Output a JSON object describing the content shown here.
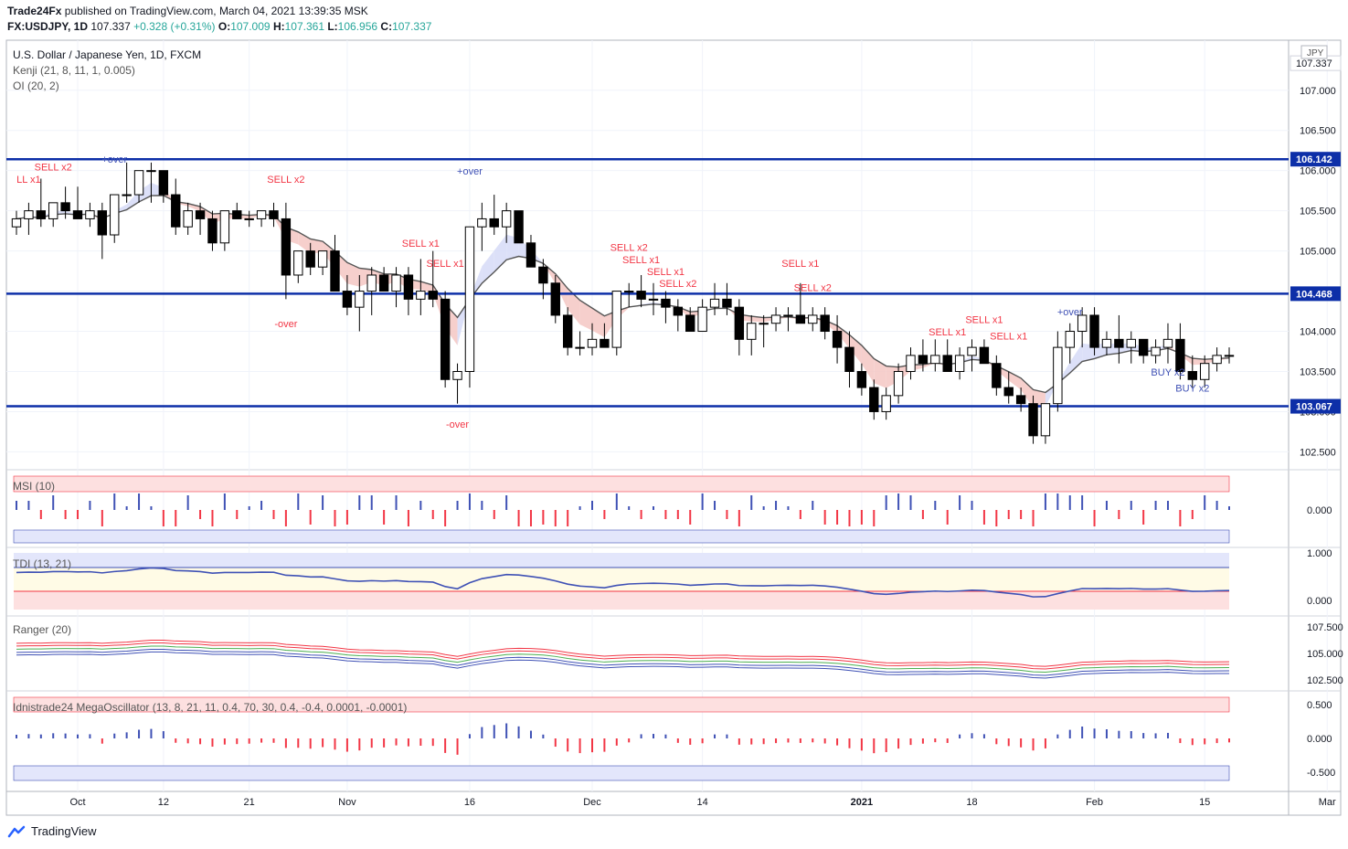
{
  "header": {
    "publisher": "Trade24Fx",
    "published_text": "published on TradingView.com, March 04, 2021 13:39:35 MSK",
    "symbol": "FX:USDJPY, 1D",
    "last": "107.337",
    "change": "+0.328 (+0.31%)",
    "open": "107.009",
    "high": "107.361",
    "low": "106.956",
    "close": "107.337"
  },
  "footer": {
    "brand": "TradingView",
    "logo_icon": "tradingview-logo-icon"
  },
  "colors": {
    "up": "#ffffff",
    "down": "#000000",
    "hline": "#0d2fa8",
    "hline_label_bg": "#0d2fa8",
    "kenji_fill_bear": "#f4c7c3",
    "kenji_fill_bull": "#cfe8cf",
    "kenji_fill_blue": "#d6dbf7",
    "sell": "#f23645",
    "buy": "#3f51b5",
    "green": "#4caf50"
  },
  "chart_data": [
    {
      "type": "candlestick",
      "title": "U.S. Dollar / Japanese Yen, 1D, FXCM",
      "indicators": [
        "Kenji (21, 8, 11, 1, 0.005)",
        "OI (20, 2)"
      ],
      "currency_label": "JPY",
      "ylim": [
        102.3,
        107.6
      ],
      "y_ticks": [
        "102.500",
        "103.000",
        "103.500",
        "104.000",
        "104.500",
        "105.000",
        "105.500",
        "106.000",
        "106.500",
        "107.000",
        "107.337"
      ],
      "x_ticks": [
        {
          "label": "Oct",
          "idx": 5
        },
        {
          "label": "12",
          "idx": 12
        },
        {
          "label": "21",
          "idx": 19
        },
        {
          "label": "Nov",
          "idx": 27
        },
        {
          "label": "16",
          "idx": 37
        },
        {
          "label": "Dec",
          "idx": 47
        },
        {
          "label": "14",
          "idx": 56
        },
        {
          "label": "2021",
          "idx": 69
        },
        {
          "label": "18",
          "idx": 78
        },
        {
          "label": "Feb",
          "idx": 88
        },
        {
          "label": "15",
          "idx": 97
        },
        {
          "label": "Mar",
          "idx": 107
        }
      ],
      "horizontal_lines": [
        106.142,
        104.468,
        103.067
      ],
      "candles": [
        [
          105.3,
          105.5,
          105.2,
          105.4
        ],
        [
          105.4,
          105.6,
          105.2,
          105.5
        ],
        [
          105.5,
          105.9,
          105.3,
          105.4
        ],
        [
          105.4,
          105.6,
          105.3,
          105.6
        ],
        [
          105.6,
          105.8,
          105.4,
          105.5
        ],
        [
          105.5,
          105.8,
          105.4,
          105.4
        ],
        [
          105.4,
          105.6,
          105.3,
          105.5
        ],
        [
          105.5,
          105.6,
          104.9,
          105.2
        ],
        [
          105.2,
          105.7,
          105.1,
          105.7
        ],
        [
          105.7,
          106.1,
          105.6,
          105.7
        ],
        [
          105.7,
          106.0,
          105.6,
          106.0
        ],
        [
          106.0,
          106.1,
          105.6,
          106.0
        ],
        [
          106.0,
          106.0,
          105.6,
          105.7
        ],
        [
          105.7,
          105.9,
          105.2,
          105.3
        ],
        [
          105.3,
          105.6,
          105.2,
          105.5
        ],
        [
          105.5,
          105.6,
          105.2,
          105.4
        ],
        [
          105.4,
          105.5,
          105.0,
          105.1
        ],
        [
          105.1,
          105.5,
          105.0,
          105.5
        ],
        [
          105.5,
          105.6,
          105.4,
          105.4
        ],
        [
          105.4,
          105.5,
          105.3,
          105.4
        ],
        [
          105.4,
          105.5,
          105.3,
          105.5
        ],
        [
          105.5,
          105.6,
          105.3,
          105.4
        ],
        [
          105.4,
          105.6,
          104.4,
          104.7
        ],
        [
          104.7,
          105.0,
          104.6,
          105.0
        ],
        [
          105.0,
          105.1,
          104.7,
          104.8
        ],
        [
          104.8,
          105.0,
          104.7,
          105.0
        ],
        [
          105.0,
          105.2,
          104.5,
          104.5
        ],
        [
          104.5,
          104.7,
          104.2,
          104.3
        ],
        [
          104.3,
          104.7,
          104.0,
          104.5
        ],
        [
          104.5,
          104.8,
          104.2,
          104.7
        ],
        [
          104.7,
          104.8,
          104.5,
          104.5
        ],
        [
          104.5,
          104.8,
          104.3,
          104.7
        ],
        [
          104.7,
          104.8,
          104.2,
          104.4
        ],
        [
          104.4,
          104.9,
          104.2,
          104.5
        ],
        [
          104.5,
          105.0,
          104.3,
          104.4
        ],
        [
          104.4,
          104.5,
          103.3,
          103.4
        ],
        [
          103.4,
          103.6,
          103.1,
          103.5
        ],
        [
          103.5,
          105.3,
          103.3,
          105.3
        ],
        [
          105.3,
          105.6,
          105.0,
          105.4
        ],
        [
          105.4,
          105.7,
          105.2,
          105.3
        ],
        [
          105.3,
          105.6,
          105.1,
          105.5
        ],
        [
          105.5,
          105.5,
          105.1,
          105.1
        ],
        [
          105.1,
          105.2,
          104.8,
          104.8
        ],
        [
          104.8,
          104.9,
          104.4,
          104.6
        ],
        [
          104.6,
          104.7,
          104.1,
          104.2
        ],
        [
          104.2,
          104.3,
          103.7,
          103.8
        ],
        [
          103.8,
          104.0,
          103.7,
          103.8
        ],
        [
          103.8,
          104.1,
          103.7,
          103.9
        ],
        [
          103.9,
          104.1,
          103.8,
          103.8
        ],
        [
          103.8,
          104.5,
          103.7,
          104.5
        ],
        [
          104.5,
          104.6,
          104.3,
          104.5
        ],
        [
          104.5,
          104.7,
          104.3,
          104.4
        ],
        [
          104.4,
          104.6,
          104.2,
          104.4
        ],
        [
          104.4,
          104.5,
          104.1,
          104.3
        ],
        [
          104.3,
          104.4,
          104.0,
          104.2
        ],
        [
          104.2,
          104.3,
          104.0,
          104.0
        ],
        [
          104.0,
          104.4,
          104.0,
          104.3
        ],
        [
          104.3,
          104.6,
          104.2,
          104.4
        ],
        [
          104.4,
          104.6,
          104.2,
          104.3
        ],
        [
          104.3,
          104.4,
          103.7,
          103.9
        ],
        [
          103.9,
          104.2,
          103.7,
          104.1
        ],
        [
          104.1,
          104.2,
          103.8,
          104.1
        ],
        [
          104.1,
          104.3,
          104.0,
          104.2
        ],
        [
          104.2,
          104.3,
          104.0,
          104.2
        ],
        [
          104.2,
          104.6,
          104.1,
          104.1
        ],
        [
          104.1,
          104.3,
          104.0,
          104.2
        ],
        [
          104.2,
          104.3,
          103.9,
          104.0
        ],
        [
          104.0,
          104.2,
          103.6,
          103.8
        ],
        [
          103.8,
          104.0,
          103.3,
          103.5
        ],
        [
          103.5,
          103.6,
          103.2,
          103.3
        ],
        [
          103.3,
          103.4,
          102.9,
          103.0
        ],
        [
          103.0,
          103.3,
          102.9,
          103.2
        ],
        [
          103.2,
          103.6,
          103.1,
          103.5
        ],
        [
          103.5,
          103.8,
          103.4,
          103.7
        ],
        [
          103.7,
          103.9,
          103.5,
          103.6
        ],
        [
          103.6,
          103.9,
          103.5,
          103.7
        ],
        [
          103.7,
          103.9,
          103.5,
          103.5
        ],
        [
          103.5,
          103.8,
          103.4,
          103.7
        ],
        [
          103.7,
          103.9,
          103.5,
          103.8
        ],
        [
          103.8,
          103.9,
          103.6,
          103.6
        ],
        [
          103.6,
          103.7,
          103.2,
          103.3
        ],
        [
          103.3,
          103.5,
          103.1,
          103.2
        ],
        [
          103.2,
          103.3,
          103.0,
          103.1
        ],
        [
          103.1,
          103.2,
          102.6,
          102.7
        ],
        [
          102.7,
          103.1,
          102.6,
          103.1
        ],
        [
          103.1,
          104.0,
          103.0,
          103.8
        ],
        [
          103.8,
          104.1,
          103.6,
          104.0
        ],
        [
          104.0,
          104.3,
          103.8,
          104.2
        ],
        [
          104.2,
          104.3,
          103.7,
          103.8
        ],
        [
          103.8,
          104.0,
          103.7,
          103.9
        ],
        [
          103.9,
          104.2,
          103.6,
          103.8
        ],
        [
          103.8,
          104.0,
          103.6,
          103.9
        ],
        [
          103.9,
          103.9,
          103.6,
          103.7
        ],
        [
          103.7,
          103.9,
          103.6,
          103.8
        ],
        [
          103.8,
          104.1,
          103.6,
          103.9
        ],
        [
          103.9,
          104.1,
          103.4,
          103.5
        ],
        [
          103.5,
          103.7,
          103.3,
          103.4
        ],
        [
          103.4,
          103.7,
          103.3,
          103.6
        ],
        [
          103.6,
          103.8,
          103.5,
          103.7
        ],
        [
          103.7,
          103.8,
          103.6,
          103.7
        ]
      ]
    },
    {
      "type": "bar",
      "title": "MSI (10)",
      "y_ticks": [
        "0.000"
      ],
      "note": "histogram oscillator"
    },
    {
      "type": "line",
      "title": "TDI (13, 21)",
      "y_ticks": [
        "1.000",
        "0.000"
      ]
    },
    {
      "type": "line",
      "title": "Ranger (20)",
      "y_ticks": [
        "107.500",
        "105.000",
        "102.500"
      ]
    },
    {
      "type": "bar",
      "title": "Idnistrade24 MegaOscillator (13, 8, 21, 11, 0.4, 70, 30, 0.4, -0.4, 0.0001, -0.0001)",
      "y_ticks": [
        "0.500",
        "0.000",
        "-0.500"
      ]
    }
  ],
  "price_labels": {
    "current": "107.337",
    "levels": [
      "106.142",
      "104.468",
      "103.067"
    ]
  },
  "signals": {
    "sell": [
      {
        "text": "SELL x2",
        "idx": 3,
        "price": 106.0
      },
      {
        "text": "LL x1",
        "idx": 1,
        "price": 105.85
      },
      {
        "text": "SELL x2",
        "idx": 22,
        "price": 105.85
      },
      {
        "text": "SELL x1",
        "idx": 33,
        "price": 105.05
      },
      {
        "text": "SELL x1",
        "idx": 35,
        "price": 104.8
      },
      {
        "text": "SELL x2",
        "idx": 50,
        "price": 105.0
      },
      {
        "text": "SELL x1",
        "idx": 51,
        "price": 104.85
      },
      {
        "text": "SELL x1",
        "idx": 53,
        "price": 104.7
      },
      {
        "text": "SELL x2",
        "idx": 54,
        "price": 104.55
      },
      {
        "text": "SELL x1",
        "idx": 64,
        "price": 104.8
      },
      {
        "text": "SELL x2",
        "idx": 65,
        "price": 104.5
      },
      {
        "text": "SELL x1",
        "idx": 76,
        "price": 103.95
      },
      {
        "text": "SELL x1",
        "idx": 79,
        "price": 104.1
      },
      {
        "text": "SELL x1",
        "idx": 81,
        "price": 103.9
      }
    ],
    "buy": [
      {
        "text": "BUY x2",
        "idx": 94,
        "price": 103.45
      },
      {
        "text": "BUY x2",
        "idx": 96,
        "price": 103.25
      }
    ],
    "over": [
      {
        "text": "+over",
        "idx": 8,
        "price": 106.1,
        "kind": "plus"
      },
      {
        "text": "-over",
        "idx": 22,
        "price": 104.05,
        "kind": "minus"
      },
      {
        "text": "+over",
        "idx": 37,
        "price": 105.95,
        "kind": "plus"
      },
      {
        "text": "-over",
        "idx": 36,
        "price": 102.8,
        "kind": "minus"
      },
      {
        "text": "+over",
        "idx": 86,
        "price": 104.2,
        "kind": "plus"
      }
    ]
  }
}
